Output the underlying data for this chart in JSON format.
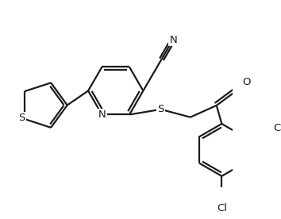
{
  "bg_color": "#ffffff",
  "line_color": "#1a1a1a",
  "line_width": 1.6,
  "font_size": 9.5,
  "figsize": [
    3.54,
    2.76
  ],
  "dpi": 100,
  "xlim": [
    0,
    354
  ],
  "ylim": [
    0,
    276
  ]
}
